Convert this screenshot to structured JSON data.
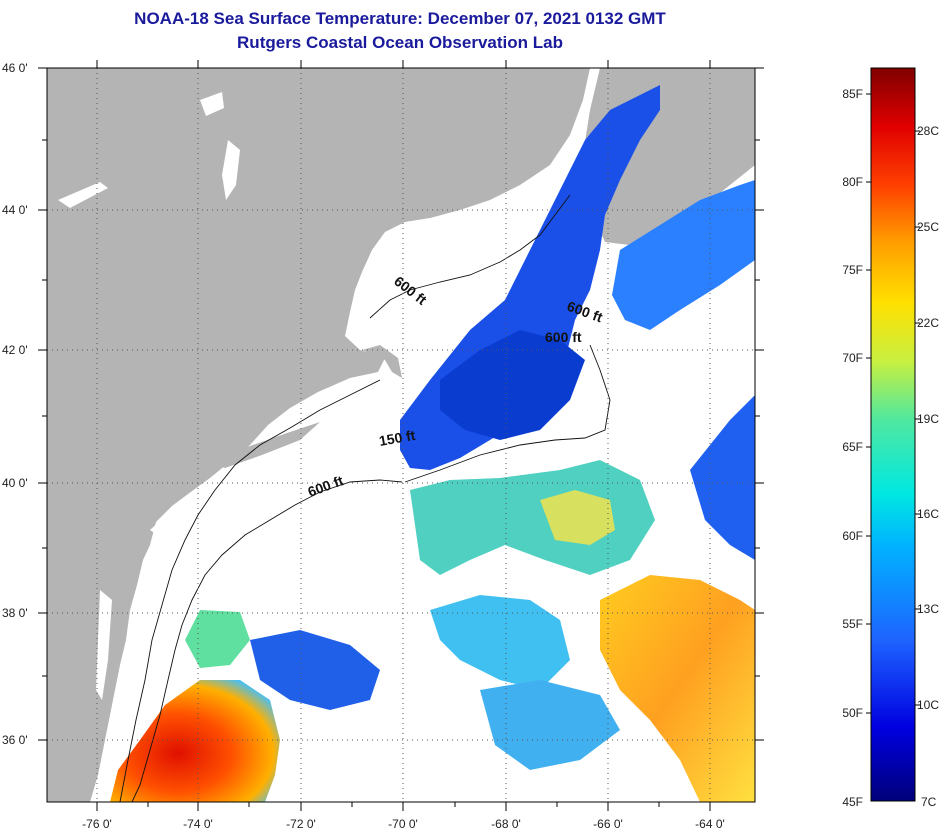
{
  "title": {
    "line1": "NOAA-18 Sea Surface Temperature:  December 07, 2021 0132 GMT",
    "line2": "Rutgers Coastal Ocean Observation Lab"
  },
  "map": {
    "lat_labels": [
      "46 0'",
      "44 0'",
      "42 0'",
      "40 0'",
      "38 0'",
      "36 0'"
    ],
    "lon_labels": [
      "-76 0'",
      "-74 0'",
      "-72 0'",
      "-70 0'",
      "-68 0'",
      "-66 0'",
      "-64 0'"
    ],
    "contour_labels": [
      "600 ft",
      "600 ft",
      "600 ft",
      "150 ft",
      "600 ft"
    ],
    "colors": {
      "land": "#b4b4b4",
      "no_data": "#ffffff",
      "frame": "#000000"
    }
  },
  "colorbar": {
    "fahrenheit_labels": [
      "85F",
      "80F",
      "75F",
      "70F",
      "65F",
      "60F",
      "55F",
      "50F",
      "45F"
    ],
    "celsius_labels": [
      "28C",
      "25C",
      "22C",
      "19C",
      "16C",
      "13C",
      "10C",
      "7C"
    ],
    "gradient_stops": [
      "#00007a",
      "#0000e0",
      "#1e64ff",
      "#00b4ff",
      "#00e8e0",
      "#50e8a0",
      "#c8f040",
      "#ffe000",
      "#ffa000",
      "#ff4000",
      "#e00000",
      "#800000"
    ]
  }
}
